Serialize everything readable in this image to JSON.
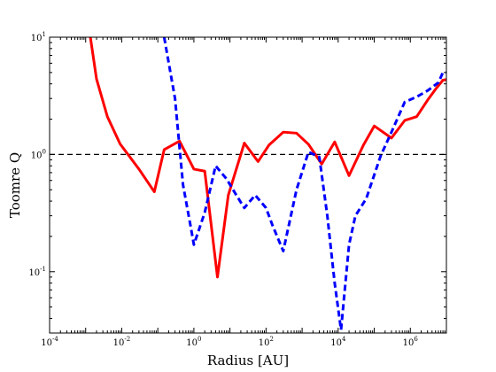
{
  "chart_data": {
    "type": "line",
    "xlabel": "Radius [AU]",
    "ylabel": "Toomre Q",
    "xscale": "log",
    "yscale": "log",
    "xlim": [
      0.0001,
      10000000
    ],
    "ylim": [
      0.03,
      10
    ],
    "grid": false,
    "legend": "none",
    "x_ticks": [
      {
        "base": "10",
        "exp": "-4",
        "value": 0.0001
      },
      {
        "base": "10",
        "exp": "-2",
        "value": 0.01
      },
      {
        "base": "10",
        "exp": "0",
        "value": 1
      },
      {
        "base": "10",
        "exp": "2",
        "value": 100
      },
      {
        "base": "10",
        "exp": "4",
        "value": 10000
      },
      {
        "base": "10",
        "exp": "6",
        "value": 1000000
      }
    ],
    "y_ticks": [
      {
        "base": "10",
        "exp": "-1",
        "value": 0.1
      },
      {
        "base": "10",
        "exp": "0",
        "value": 1
      },
      {
        "base": "10",
        "exp": "1",
        "value": 10
      }
    ],
    "reference_line": {
      "y": 1,
      "style": "dashed",
      "color": "#000000"
    },
    "series": [
      {
        "color": "#ff0000",
        "style": "solid",
        "points": [
          [
            0.00135,
            10
          ],
          [
            0.002,
            4.4
          ],
          [
            0.004,
            2.1
          ],
          [
            0.009,
            1.23
          ],
          [
            0.03,
            0.75
          ],
          [
            0.08,
            0.48
          ],
          [
            0.15,
            1.1
          ],
          [
            0.4,
            1.3
          ],
          [
            1.0,
            0.75
          ],
          [
            2.0,
            0.72
          ],
          [
            4.5,
            0.09
          ],
          [
            9,
            0.45
          ],
          [
            25,
            1.25
          ],
          [
            60,
            0.87
          ],
          [
            120,
            1.2
          ],
          [
            300,
            1.55
          ],
          [
            700,
            1.52
          ],
          [
            1500,
            1.22
          ],
          [
            3500,
            0.83
          ],
          [
            8000,
            1.28
          ],
          [
            20000,
            0.66
          ],
          [
            50000,
            1.2
          ],
          [
            100000,
            1.75
          ],
          [
            300000,
            1.38
          ],
          [
            700000,
            1.95
          ],
          [
            1500000,
            2.1
          ],
          [
            3000000,
            2.9
          ],
          [
            5000000,
            3.6
          ],
          [
            8000000,
            4.3
          ],
          [
            10000000,
            4.35
          ]
        ]
      },
      {
        "color": "#0000ff",
        "style": "dashed",
        "points": [
          [
            0.15,
            10
          ],
          [
            0.3,
            3.0
          ],
          [
            0.5,
            0.55
          ],
          [
            0.8,
            0.25
          ],
          [
            1.0,
            0.17
          ],
          [
            2.0,
            0.32
          ],
          [
            4.0,
            0.8
          ],
          [
            8.0,
            0.62
          ],
          [
            15,
            0.45
          ],
          [
            25,
            0.35
          ],
          [
            50,
            0.45
          ],
          [
            100,
            0.35
          ],
          [
            150,
            0.25
          ],
          [
            300,
            0.15
          ],
          [
            700,
            0.5
          ],
          [
            1500,
            1.05
          ],
          [
            3000,
            0.95
          ],
          [
            5000,
            0.3
          ],
          [
            8000,
            0.08
          ],
          [
            12000,
            0.032
          ],
          [
            20000,
            0.17
          ],
          [
            30000,
            0.3
          ],
          [
            60000,
            0.42
          ],
          [
            150000,
            0.97
          ],
          [
            300000,
            1.55
          ],
          [
            700000,
            2.8
          ],
          [
            1500000,
            3.1
          ],
          [
            3000000,
            3.5
          ],
          [
            6000000,
            4.1
          ],
          [
            8000000,
            5.0
          ],
          [
            10000000,
            5.0
          ]
        ]
      }
    ]
  }
}
